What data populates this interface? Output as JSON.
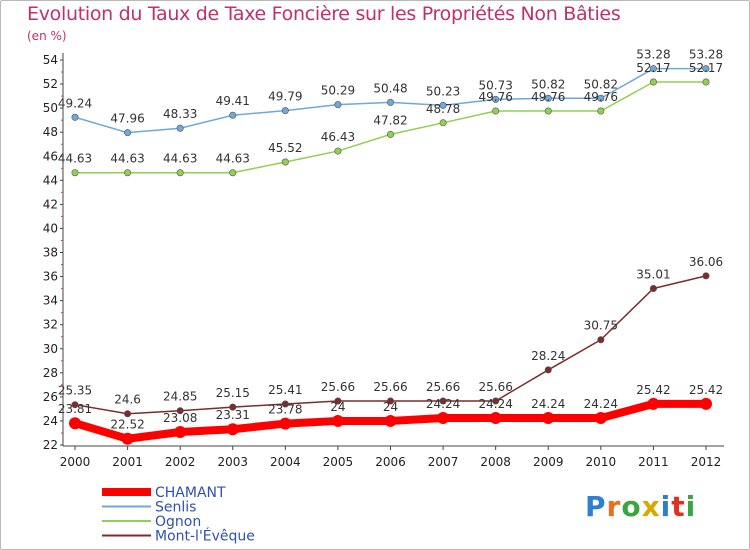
{
  "chart_data": {
    "type": "line",
    "title": "Evolution du Taux de Taxe Foncière sur les Propriétés Non Bâties",
    "subtitle": "(en %)",
    "x": [
      "2000",
      "2001",
      "2002",
      "2003",
      "2004",
      "2005",
      "2006",
      "2007",
      "2008",
      "2009",
      "2010",
      "2011",
      "2012"
    ],
    "ylim": [
      22,
      54
    ],
    "yticks": [
      22,
      24,
      26,
      28,
      30,
      32,
      34,
      36,
      38,
      40,
      42,
      44,
      46,
      48,
      50,
      52,
      54
    ],
    "grid": false,
    "legend_position": "bottom-left",
    "series": [
      {
        "name": "CHAMANT",
        "color": "#ff0000",
        "values": [
          23.81,
          22.52,
          23.08,
          23.31,
          23.78,
          24,
          24,
          24.24,
          24.24,
          24.24,
          24.24,
          25.42,
          25.42
        ],
        "labels": [
          "23.81",
          "22.52",
          "23.08",
          "23.31",
          "23.78",
          "24",
          "24",
          "24.24",
          "24.24",
          "24.24",
          "24.24",
          "25.42",
          "25.42"
        ]
      },
      {
        "name": "Senlis",
        "color": "#6fa8dc",
        "values": [
          49.24,
          47.96,
          48.33,
          49.41,
          49.79,
          50.29,
          50.48,
          50.23,
          50.73,
          50.82,
          50.82,
          53.28,
          53.28
        ],
        "labels": [
          "49.24",
          "47.96",
          "48.33",
          "49.41",
          "49.79",
          "50.29",
          "50.48",
          "50.23",
          "50.73",
          "50.82",
          "50.82",
          "53.28",
          "53.28"
        ]
      },
      {
        "name": "Ognon",
        "color": "#92d050",
        "values": [
          44.63,
          44.63,
          44.63,
          44.63,
          45.52,
          46.43,
          47.82,
          48.78,
          49.76,
          49.76,
          49.76,
          52.17,
          52.17
        ],
        "labels": [
          "44.63",
          "44.63",
          "44.63",
          "44.63",
          "45.52",
          "46.43",
          "47.82",
          "48.78",
          "49.76",
          "49.76",
          "49.76",
          "52.17",
          "52.17"
        ]
      },
      {
        "name": "Mont-l'Évêque",
        "color": "#7b2c2c",
        "values": [
          25.35,
          24.6,
          24.85,
          25.15,
          25.41,
          25.66,
          25.66,
          25.66,
          25.66,
          28.24,
          30.75,
          35.01,
          36.06
        ],
        "labels": [
          "25.35",
          "24.6",
          "24.85",
          "25.15",
          "25.41",
          "25.66",
          "25.66",
          "25.66",
          "25.66",
          "28.24",
          "30.75",
          "35.01",
          "36.06"
        ]
      }
    ]
  },
  "logo": {
    "text": "Proxiti"
  }
}
